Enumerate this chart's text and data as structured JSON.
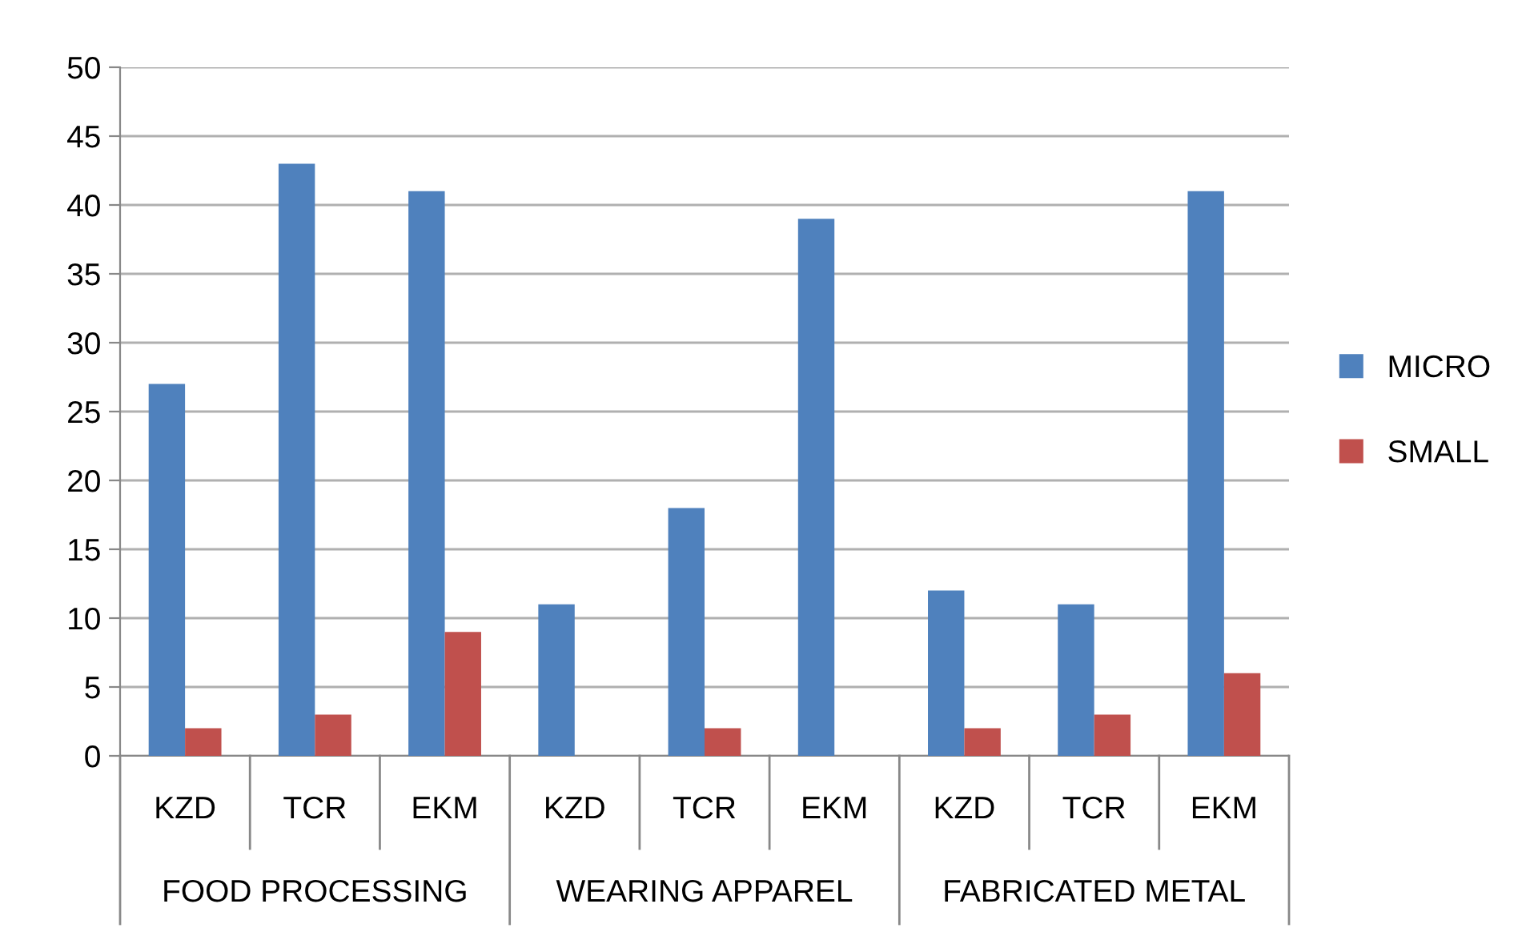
{
  "chart_data": {
    "type": "bar",
    "categories": [
      "KZD",
      "TCR",
      "EKM",
      "KZD",
      "TCR",
      "EKM",
      "KZD",
      "TCR",
      "EKM"
    ],
    "series": [
      {
        "name": "MICRO",
        "color": "#4f81bd",
        "values": [
          27,
          43,
          41,
          11,
          18,
          39,
          12,
          11,
          41
        ]
      },
      {
        "name": "SMALL",
        "color": "#c0504d",
        "values": [
          2,
          3,
          9,
          0,
          2,
          0,
          2,
          3,
          6
        ]
      }
    ],
    "annotations": [
      "FOOD PROCESSING",
      "WEARING APPAREL",
      "FABRICATED METAL"
    ],
    "ylim": [
      0,
      50
    ],
    "yticks": [
      0,
      5,
      10,
      15,
      20,
      25,
      30,
      35,
      40,
      45,
      50
    ],
    "grid": "y",
    "legend": "right"
  }
}
